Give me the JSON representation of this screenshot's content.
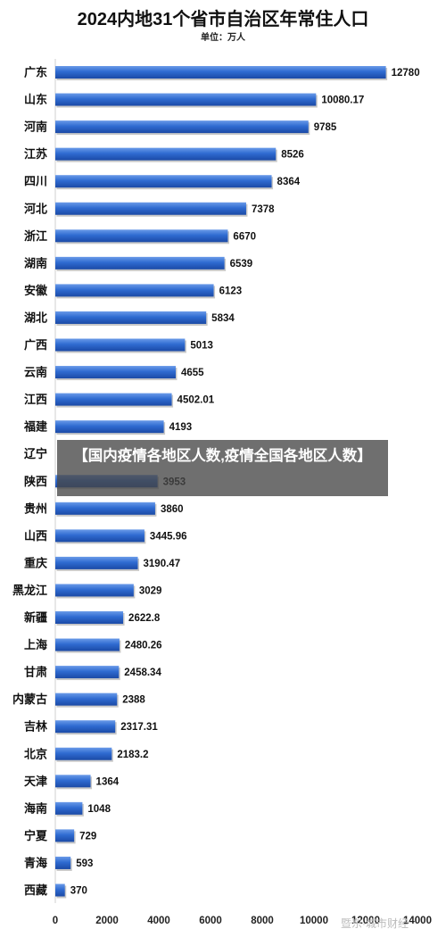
{
  "chart_data": {
    "type": "bar",
    "orientation": "horizontal",
    "title": "2024内地31个省市自治区年常住人口",
    "subtitle": "单位：万人",
    "categories": [
      "广东",
      "山东",
      "河南",
      "江苏",
      "四川",
      "河北",
      "浙江",
      "湖南",
      "安徽",
      "湖北",
      "广西",
      "云南",
      "江西",
      "福建",
      "辽宁",
      "陕西",
      "贵州",
      "山西",
      "重庆",
      "黑龙江",
      "新疆",
      "上海",
      "甘肃",
      "内蒙古",
      "吉林",
      "北京",
      "天津",
      "海南",
      "宁夏",
      "青海",
      "西藏"
    ],
    "values": [
      12780,
      10080.17,
      9785,
      8526,
      8364,
      7378,
      6670,
      6539,
      6123,
      5834,
      5013,
      4655,
      4502.01,
      4193,
      null,
      3953,
      3860,
      3445.96,
      3190.47,
      3029,
      2622.8,
      2480.26,
      2458.34,
      2388,
      2317.31,
      2183.2,
      1364,
      1048,
      729,
      593,
      370
    ],
    "value_labels": [
      "12780",
      "10080.17",
      "9785",
      "8526",
      "8364",
      "7378",
      "6670",
      "6539",
      "6123",
      "5834",
      "5013",
      "4655",
      "4502.01",
      "4193",
      "",
      "3953",
      "3860",
      "3445.96",
      "3190.47",
      "3029",
      "2622.8",
      "2480.26",
      "2458.34",
      "2388",
      "2317.31",
      "2183.2",
      "1364",
      "1048",
      "729",
      "593",
      "370"
    ],
    "xlim": [
      0,
      14000
    ],
    "xticks": [
      0,
      2000,
      4000,
      6000,
      8000,
      10000,
      12000,
      14000
    ],
    "grid": false,
    "legend": "none",
    "bar_color": "#2f6bd1"
  },
  "overlay": {
    "text": "【国内疫情各地区人数,疫情全国各地区人数】"
  },
  "watermark": {
    "text": "暨东·城市财经"
  }
}
